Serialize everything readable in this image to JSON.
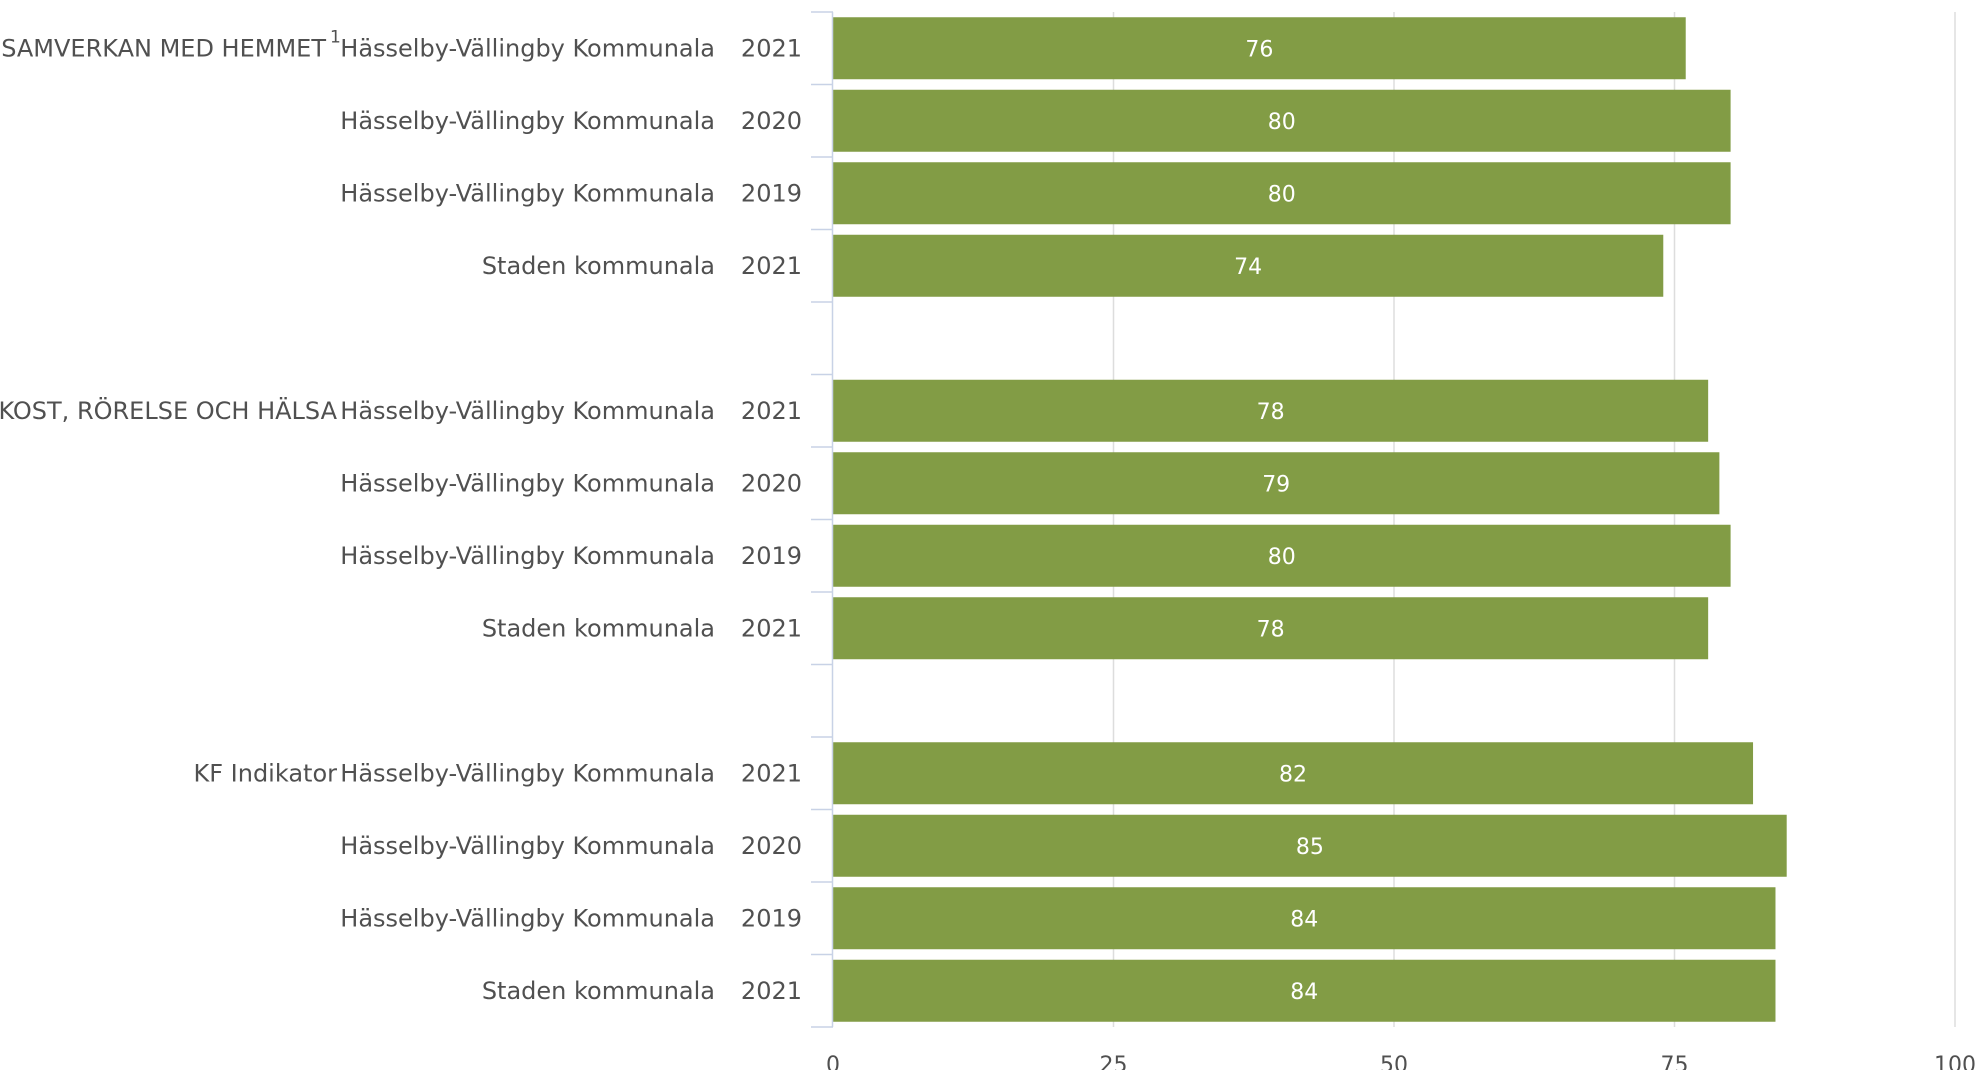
{
  "chart_data": {
    "type": "bar",
    "orientation": "horizontal",
    "title": "",
    "xlabel": "",
    "ylabel": "",
    "xlim": [
      0,
      100
    ],
    "x_ticks": [
      0,
      25,
      50,
      75,
      100
    ],
    "grid": true,
    "legend": "none",
    "bar_color": "#829c45",
    "groups": [
      {
        "label": "SAMVERKAN MED HEMMET",
        "superscript": "1",
        "rows": [
          {
            "unit": "Hässelby-Vällingby Kommunala",
            "year": "2021",
            "value": 76
          },
          {
            "unit": "Hässelby-Vällingby Kommunala",
            "year": "2020",
            "value": 80
          },
          {
            "unit": "Hässelby-Vällingby Kommunala",
            "year": "2019",
            "value": 80
          },
          {
            "unit": "Staden kommunala",
            "year": "2021",
            "value": 74
          }
        ]
      },
      {
        "label": "KOST, RÖRELSE OCH HÄLSA",
        "superscript": "",
        "rows": [
          {
            "unit": "Hässelby-Vällingby Kommunala",
            "year": "2021",
            "value": 78
          },
          {
            "unit": "Hässelby-Vällingby Kommunala",
            "year": "2020",
            "value": 79
          },
          {
            "unit": "Hässelby-Vällingby Kommunala",
            "year": "2019",
            "value": 80
          },
          {
            "unit": "Staden kommunala",
            "year": "2021",
            "value": 78
          }
        ]
      },
      {
        "label": "KF Indikator",
        "superscript": "",
        "rows": [
          {
            "unit": "Hässelby-Vällingby Kommunala",
            "year": "2021",
            "value": 82
          },
          {
            "unit": "Hässelby-Vällingby Kommunala",
            "year": "2020",
            "value": 85
          },
          {
            "unit": "Hässelby-Vällingby Kommunala",
            "year": "2019",
            "value": 84
          },
          {
            "unit": "Staden kommunala",
            "year": "2021",
            "value": 84
          }
        ]
      }
    ]
  }
}
